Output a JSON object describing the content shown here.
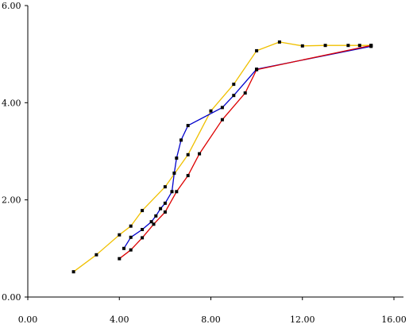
{
  "chart_data": {
    "type": "line",
    "title": "",
    "xlabel": "",
    "ylabel": "",
    "xlim": [
      0,
      16
    ],
    "ylim": [
      0,
      6
    ],
    "x_ticks": [
      "0.00",
      "4.00",
      "8.00",
      "12.00",
      "16.00"
    ],
    "y_ticks": [
      "0.00",
      "2.00",
      "4.00",
      "6.00"
    ],
    "x_tick_values": [
      0,
      4,
      8,
      12,
      16
    ],
    "y_tick_values": [
      0,
      2,
      4,
      6
    ],
    "grid": false,
    "series": [
      {
        "color": "#f0c000",
        "points": [
          [
            2.0,
            0.52
          ],
          [
            3.0,
            0.87
          ],
          [
            4.0,
            1.28
          ],
          [
            4.5,
            1.46
          ],
          [
            5.0,
            1.78
          ],
          [
            6.0,
            2.27
          ],
          [
            7.0,
            2.93
          ],
          [
            8.0,
            3.83
          ],
          [
            9.0,
            4.38
          ],
          [
            10.0,
            5.07
          ],
          [
            11.0,
            5.25
          ],
          [
            12.0,
            5.17
          ],
          [
            13.0,
            5.18
          ],
          [
            14.0,
            5.18
          ],
          [
            14.5,
            5.18
          ],
          [
            15.0,
            5.18
          ]
        ]
      },
      {
        "color": "#0000cc",
        "points": [
          [
            4.2,
            1.0
          ],
          [
            4.5,
            1.23
          ],
          [
            5.0,
            1.39
          ],
          [
            5.4,
            1.55
          ],
          [
            5.6,
            1.67
          ],
          [
            5.8,
            1.82
          ],
          [
            6.0,
            1.93
          ],
          [
            6.3,
            2.17
          ],
          [
            6.4,
            2.55
          ],
          [
            6.5,
            2.86
          ],
          [
            6.7,
            3.23
          ],
          [
            7.0,
            3.53
          ],
          [
            8.5,
            3.9
          ],
          [
            9.0,
            4.15
          ],
          [
            10.0,
            4.69
          ],
          [
            15.0,
            5.16
          ]
        ]
      },
      {
        "color": "#dd0000",
        "points": [
          [
            4.0,
            0.79
          ],
          [
            4.5,
            0.97
          ],
          [
            5.0,
            1.22
          ],
          [
            5.5,
            1.5
          ],
          [
            6.0,
            1.75
          ],
          [
            6.5,
            2.17
          ],
          [
            7.0,
            2.5
          ],
          [
            7.5,
            2.95
          ],
          [
            8.5,
            3.65
          ],
          [
            9.5,
            4.2
          ],
          [
            10.0,
            4.68
          ],
          [
            15.0,
            5.18
          ]
        ]
      }
    ]
  }
}
